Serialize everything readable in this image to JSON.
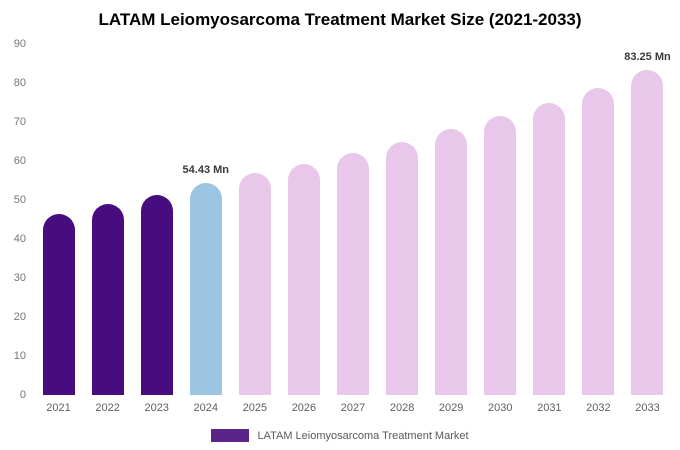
{
  "chart_data": {
    "type": "bar",
    "title": "LATAM Leiomyosarcoma Treatment Market Size (2021-2033)",
    "categories": [
      "2021",
      "2022",
      "2023",
      "2024",
      "2025",
      "2026",
      "2027",
      "2028",
      "2029",
      "2030",
      "2031",
      "2032",
      "2033"
    ],
    "values": [
      46.3,
      48.9,
      51.2,
      54.43,
      56.8,
      59.3,
      62.0,
      65.0,
      68.2,
      71.5,
      75.0,
      78.6,
      83.25
    ],
    "bar_labels": [
      "",
      "",
      "",
      "54.43 Mn",
      "",
      "",
      "",
      "",
      "",
      "",
      "",
      "",
      "83.25 Mn"
    ],
    "bar_colors": [
      "#470d7e",
      "#470d7e",
      "#470d7e",
      "#9cc5e2",
      "#e8c7ea",
      "#e8c7ea",
      "#e8c7ea",
      "#e8c7ea",
      "#e8c7ea",
      "#e8c7ea",
      "#e8c7ea",
      "#e8c7ea",
      "#e8c7ea"
    ],
    "colors": {
      "historical": "#470d7e",
      "current_year": "#9cc5e2",
      "forecast": "#e8c7ea"
    },
    "ylabel": "",
    "xlabel": "",
    "ylim": [
      0,
      90
    ],
    "yticks": [
      0,
      10,
      20,
      30,
      40,
      50,
      60,
      70,
      80,
      90
    ],
    "grid": false,
    "legend_position": "bottom",
    "legend": [
      {
        "label": "LATAM Leiomyosarcoma Treatment Market",
        "color": "#5b2488"
      }
    ]
  }
}
